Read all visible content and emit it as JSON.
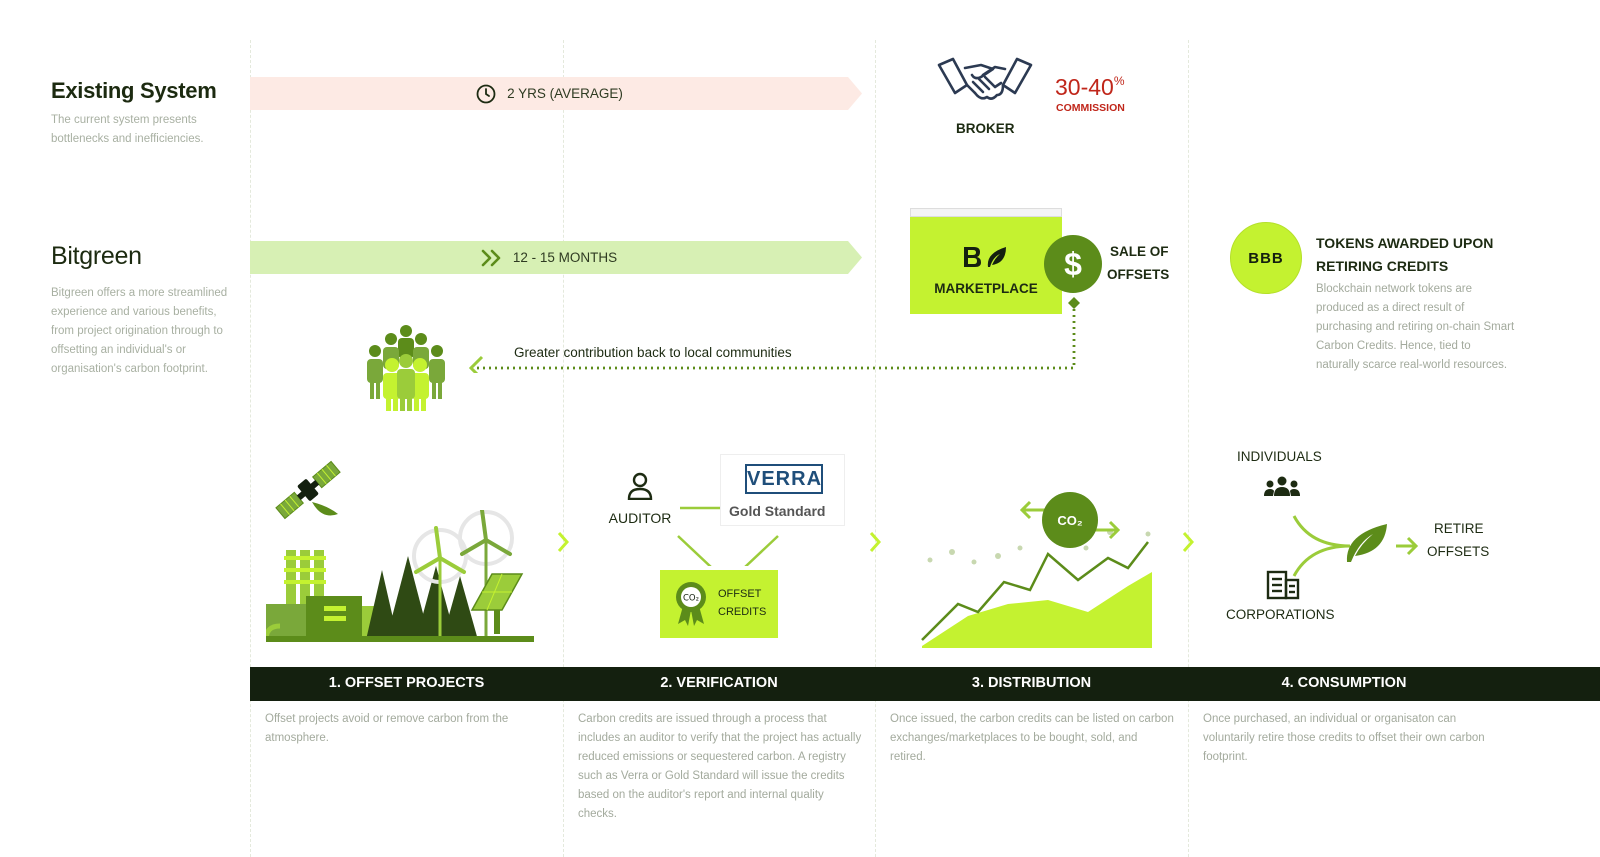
{
  "existing": {
    "title": "Existing System",
    "description": "The current system presents bottlenecks and inefficiencies.",
    "timeline": "2 YRS (AVERAGE)",
    "broker_label": "BROKER",
    "commission_value": "30-40",
    "commission_unit": "%",
    "commission_label": "COMMISSION"
  },
  "bitgreen": {
    "title": "Bitgreen",
    "description": "Bitgreen offers a more streamlined experience and various benefits, from project origination through to offsetting an individual's or organisation's carbon footprint.",
    "timeline": "12 - 15 MONTHS",
    "marketplace_label": "MARKETPLACE",
    "sale_label_1": "SALE OF",
    "sale_label_2": "OFFSETS",
    "community_label": "Greater contribution back to local communities"
  },
  "tokens": {
    "badge": "BBB",
    "title_1": "TOKENS AWARDED UPON",
    "title_2": "RETIRING CREDITS",
    "description": "Blockchain network tokens are produced as a direct result of purchasing and retiring on-chain Smart Carbon Credits. Hence, tied to naturally scarce real-world resources."
  },
  "verification_visual": {
    "auditor_label": "AUDITOR",
    "verra_label": "VERRA",
    "gold_standard_label": "Gold Standard",
    "offset_credits_1": "OFFSET",
    "offset_credits_2": "CREDITS",
    "co2_badge": "CO₂"
  },
  "distribution_visual": {
    "co2_label": "CO₂"
  },
  "consumption_visual": {
    "individuals_label": "INDIVIDUALS",
    "corporations_label": "CORPORATIONS",
    "retire_label_1": "RETIRE",
    "retire_label_2": "OFFSETS"
  },
  "stages": [
    {
      "title": "1. OFFSET PROJECTS",
      "description": "Offset projects avoid or remove carbon from the atmosphere."
    },
    {
      "title": "2. VERIFICATION",
      "description": "Carbon credits are issued through a process that includes an auditor to verify that the project has actually reduced emissions or sequestered carbon. A registry such as Verra or Gold Standard will issue the credits based on the auditor's report and internal quality checks."
    },
    {
      "title": "3. DISTRIBUTION",
      "description": "Once issued, the carbon credits can be listed on carbon exchanges/marketplaces to be bought, sold, and retired."
    },
    {
      "title": "4. CONSUMPTION",
      "description": "Once purchased, an individual or organisaton can voluntarily retire those credits to offset their own carbon footprint."
    }
  ],
  "colors": {
    "accent_lime": "#c4f230",
    "dark_green": "#14200f",
    "olive": "#5c8c1a",
    "commission_red": "#c0261a",
    "pink_band": "#fdeae4",
    "green_band": "#d7f0b4"
  },
  "icons": [
    "clock-icon",
    "chevron-double-right-icon",
    "handshake-icon",
    "dollar-icon",
    "leaf-icon",
    "community-icon",
    "satellite-icon",
    "factory-icon",
    "wind-turbine-icon",
    "solar-panel-icon",
    "forest-icon",
    "user-icon",
    "ribbon-badge-icon",
    "co2-bubble-icon",
    "area-chart-icon",
    "people-icon",
    "building-icon",
    "arrow-right-icon"
  ]
}
